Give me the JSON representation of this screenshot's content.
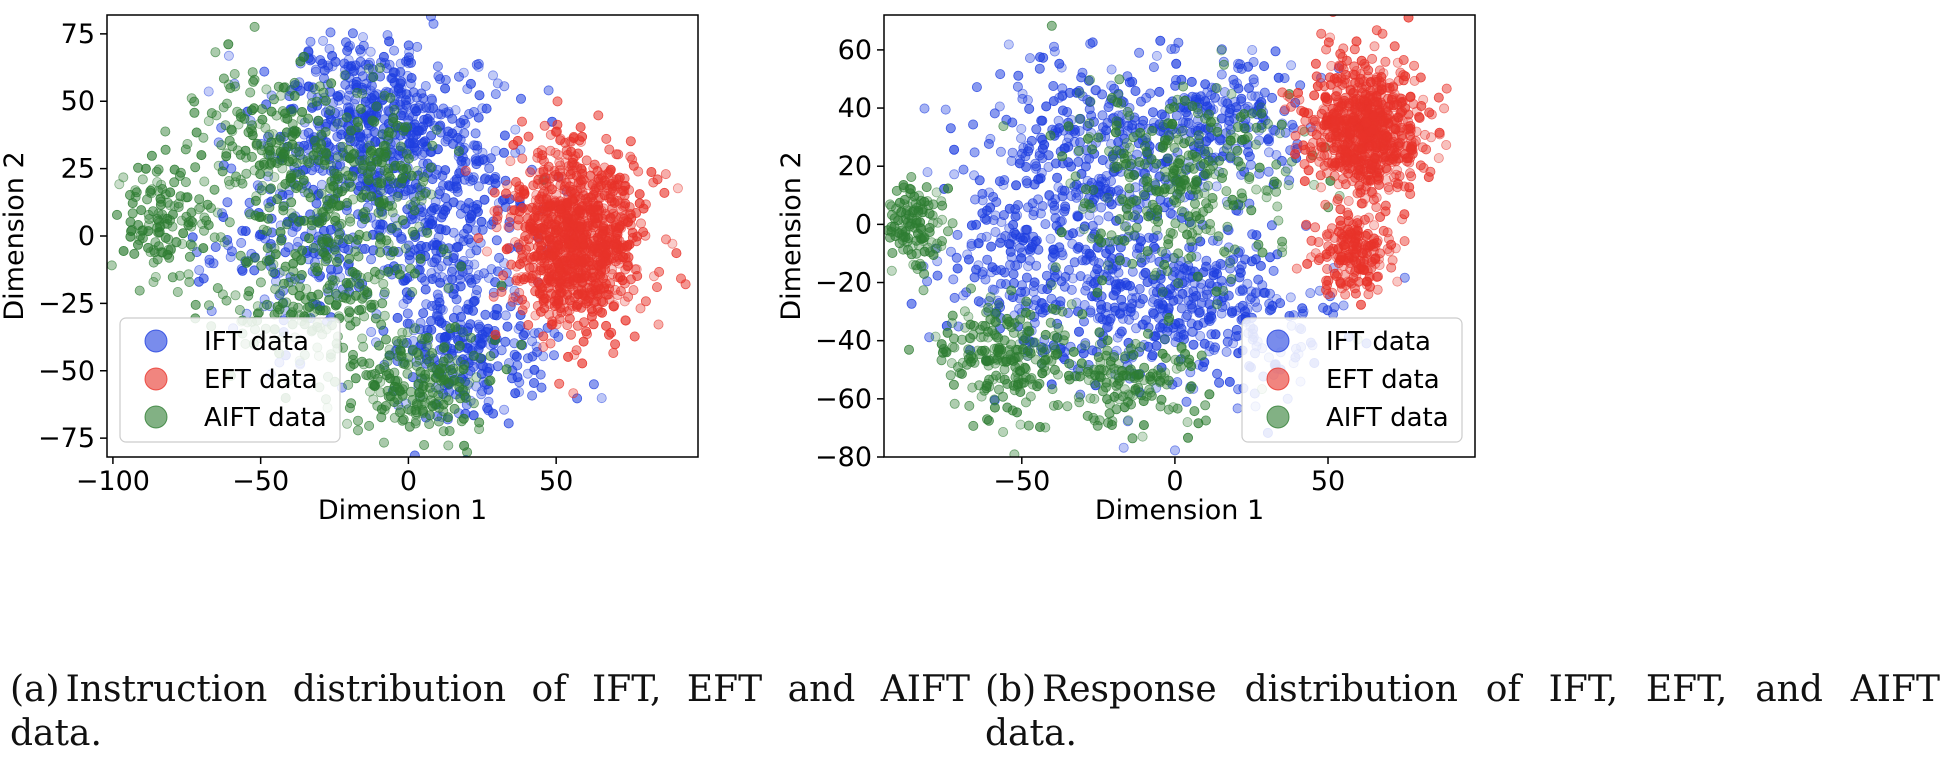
{
  "figure": {
    "caption_a": {
      "tag": "(a)",
      "text": "Instruction distribution of IFT, EFT and AIFT data."
    },
    "caption_b": {
      "tag": "(b)",
      "text": "Response distribution of IFT, EFT, and AIFT data."
    }
  },
  "colors": {
    "IFT": "#1f3fe0",
    "EFT": "#e8332a",
    "AIFT": "#2e7d32"
  },
  "chart_data": [
    {
      "type": "scatter",
      "title": "",
      "xlabel": "Dimension 1",
      "ylabel": "Dimension 2",
      "xlim": [
        -102,
        98
      ],
      "ylim": [
        -82,
        82
      ],
      "xticks": [
        -100,
        -50,
        0,
        50
      ],
      "yticks": [
        -75,
        -50,
        -25,
        0,
        25,
        50,
        75
      ],
      "grid": false,
      "legend": "bottom-left",
      "series": [
        {
          "name": "IFT data",
          "color": "#1f3fe0",
          "clusters": [
            {
              "cx": -15,
              "cy": 45,
              "sx": 16,
              "sy": 15,
              "n": 380
            },
            {
              "cx": 5,
              "cy": 15,
              "sx": 18,
              "sy": 22,
              "n": 420
            },
            {
              "cx": 20,
              "cy": -40,
              "sx": 14,
              "sy": 15,
              "n": 280
            },
            {
              "cx": -40,
              "cy": 0,
              "sx": 15,
              "sy": 20,
              "n": 160
            }
          ]
        },
        {
          "name": "EFT data",
          "color": "#e8332a",
          "clusters": [
            {
              "cx": 57,
              "cy": 0,
              "sx": 11,
              "sy": 17,
              "n": 1000
            }
          ]
        },
        {
          "name": "AIFT data",
          "color": "#2e7d32",
          "clusters": [
            {
              "cx": -48,
              "cy": 35,
              "sx": 11,
              "sy": 13,
              "n": 170
            },
            {
              "cx": -82,
              "cy": 5,
              "sx": 8,
              "sy": 11,
              "n": 140
            },
            {
              "cx": -30,
              "cy": -20,
              "sx": 17,
              "sy": 15,
              "n": 240
            },
            {
              "cx": 5,
              "cy": -55,
              "sx": 12,
              "sy": 10,
              "n": 200
            },
            {
              "cx": -15,
              "cy": 20,
              "sx": 15,
              "sy": 15,
              "n": 200
            }
          ]
        }
      ]
    },
    {
      "type": "scatter",
      "title": "",
      "xlabel": "Dimension 1",
      "ylabel": "Dimension 2",
      "xlim": [
        -95,
        98
      ],
      "ylim": [
        -80,
        72
      ],
      "xticks": [
        -50,
        0,
        50
      ],
      "yticks": [
        -80,
        -60,
        -40,
        -20,
        0,
        20,
        40,
        60
      ],
      "grid": false,
      "legend": "bottom-right",
      "series": [
        {
          "name": "IFT data",
          "color": "#1f3fe0",
          "clusters": [
            {
              "cx": -25,
              "cy": 25,
              "sx": 20,
              "sy": 17,
              "n": 360
            },
            {
              "cx": 5,
              "cy": -30,
              "sx": 20,
              "sy": 15,
              "n": 420
            },
            {
              "cx": -45,
              "cy": -15,
              "sx": 17,
              "sy": 17,
              "n": 260
            },
            {
              "cx": 15,
              "cy": 35,
              "sx": 14,
              "sy": 13,
              "n": 200
            }
          ]
        },
        {
          "name": "EFT data",
          "color": "#e8332a",
          "clusters": [
            {
              "cx": 62,
              "cy": 33,
              "sx": 9,
              "sy": 12,
              "n": 720
            },
            {
              "cx": 58,
              "cy": -10,
              "sx": 6,
              "sy": 6,
              "n": 180
            }
          ]
        },
        {
          "name": "AIFT data",
          "color": "#2e7d32",
          "clusters": [
            {
              "cx": -85,
              "cy": 0,
              "sx": 5,
              "sy": 7,
              "n": 120
            },
            {
              "cx": -55,
              "cy": -45,
              "sx": 12,
              "sy": 10,
              "n": 220
            },
            {
              "cx": 0,
              "cy": 15,
              "sx": 20,
              "sy": 17,
              "n": 320
            },
            {
              "cx": -15,
              "cy": -55,
              "sx": 12,
              "sy": 8,
              "n": 150
            }
          ]
        }
      ]
    }
  ]
}
